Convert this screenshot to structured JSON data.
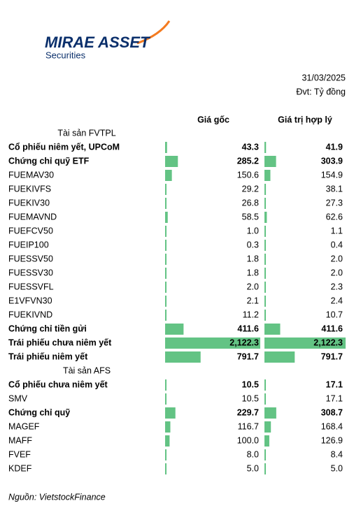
{
  "chart_data": {
    "type": "bar-table",
    "logo_text": "MIRAE ASSET",
    "logo_subtext": "Securities",
    "date": "31/03/2025",
    "unit": "Đvt: Tỷ đồng",
    "source": "Nguồn: VietstockFinance",
    "categories": [
      "Tài sản FVTPL",
      "Cổ phiếu niêm yết, UPCoM",
      "Chứng chỉ quỹ ETF",
      "FUEMAV30",
      "FUEKIVFS",
      "FUEKIV30",
      "FUEMAVND",
      "FUEFCV50",
      "FUEIP100",
      "FUESSV50",
      "FUESSV30",
      "FUESSVFL",
      "E1VFVN30",
      "FUEKIVND",
      "Chứng chỉ tiền gửi",
      "Trái phiếu chưa niêm yết",
      "Trái phiếu niêm yết",
      "Tài sản AFS",
      "Cổ phiếu chưa niêm yết",
      "SMV",
      "Chứng chỉ quỹ",
      "MAGEF",
      "MAFF",
      "FVEF",
      "KDEF"
    ],
    "row_style": [
      "section",
      "bold",
      "bold",
      "normal",
      "normal",
      "normal",
      "normal",
      "normal",
      "normal",
      "normal",
      "normal",
      "normal",
      "normal",
      "normal",
      "bold",
      "bold",
      "bold",
      "section",
      "bold",
      "normal",
      "bold",
      "normal",
      "normal",
      "normal",
      "normal"
    ],
    "series": [
      {
        "name": "Giá gốc",
        "color": "#63c384",
        "values": [
          null,
          43.3,
          285.2,
          150.6,
          29.2,
          26.8,
          58.5,
          1.0,
          0.3,
          1.8,
          1.8,
          2.0,
          2.1,
          11.2,
          411.6,
          2122.3,
          791.7,
          null,
          10.5,
          10.5,
          229.7,
          116.7,
          100.0,
          8.0,
          5.0
        ],
        "value_labels": [
          null,
          "43.3",
          "285.2",
          "150.6",
          "29.2",
          "26.8",
          "58.5",
          "1.0",
          "0.3",
          "1.8",
          "1.8",
          "2.0",
          "2.1",
          "11.2",
          "411.6",
          "2,122.3",
          "791.7",
          null,
          "10.5",
          "10.5",
          "229.7",
          "116.7",
          "100.0",
          "8.0",
          "5.0"
        ]
      },
      {
        "name": "Giá trị hợp lý",
        "color": "#63c384",
        "values": [
          null,
          41.9,
          303.9,
          154.9,
          38.1,
          27.3,
          62.6,
          1.1,
          0.4,
          2.0,
          2.0,
          2.3,
          2.4,
          10.7,
          411.6,
          2122.3,
          791.7,
          null,
          17.1,
          17.1,
          308.7,
          168.4,
          126.9,
          8.4,
          5.0
        ],
        "value_labels": [
          null,
          "41.9",
          "303.9",
          "154.9",
          "38.1",
          "27.3",
          "62.6",
          "1.1",
          "0.4",
          "2.0",
          "2.0",
          "2.3",
          "2.4",
          "10.7",
          "411.6",
          "2,122.3",
          "791.7",
          null,
          "17.1",
          "17.1",
          "308.7",
          "168.4",
          "126.9",
          "8.4",
          "5.0"
        ]
      }
    ],
    "xlim": [
      0,
      2122.3
    ]
  }
}
